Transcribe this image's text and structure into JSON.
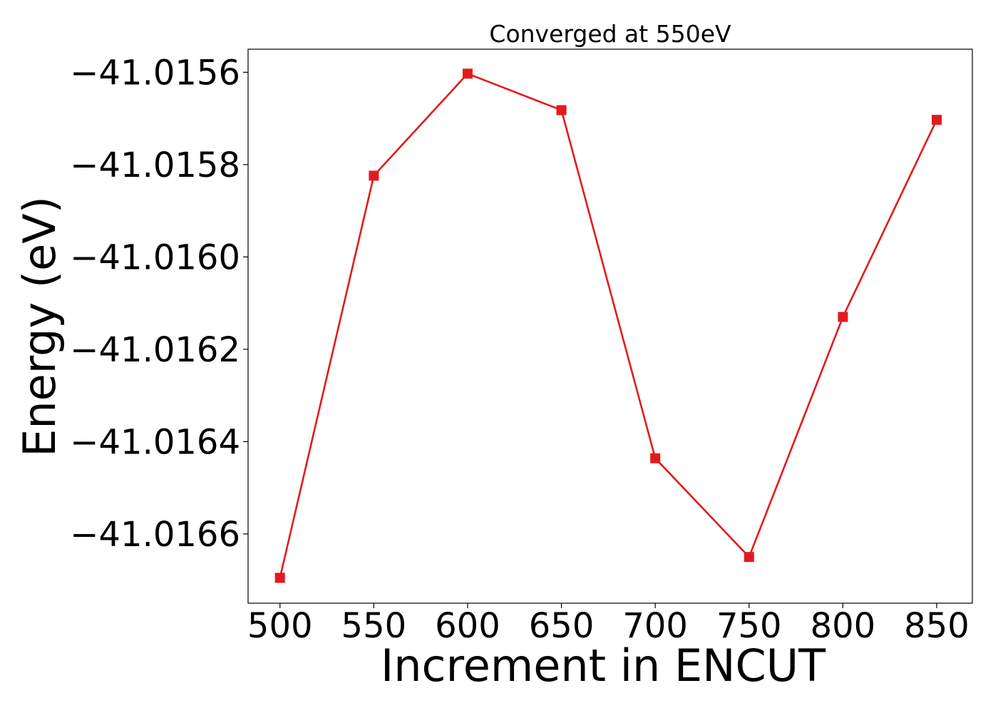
{
  "chart_data": {
    "type": "line",
    "title": "Converged at 550eV",
    "xlabel": "Increment in ENCUT",
    "ylabel": "Energy (eV)",
    "x": [
      500,
      550,
      600,
      650,
      700,
      750,
      800,
      850
    ],
    "x_ticks": [
      500,
      550,
      600,
      650,
      700,
      750,
      800,
      850
    ],
    "x_tick_labels": [
      "500",
      "550",
      "600",
      "650",
      "700",
      "750",
      "800",
      "850"
    ],
    "y_ticks": [
      -41.0156,
      -41.0158,
      -41.016,
      -41.0162,
      -41.0164,
      -41.0166
    ],
    "y_tick_labels": [
      "−41.0156",
      "−41.0158",
      "−41.0160",
      "−41.0162",
      "−41.0164",
      "−41.0166"
    ],
    "xlim": [
      483,
      869
    ],
    "ylim": [
      -41.01675,
      -41.01555
    ],
    "grid": false,
    "series": [
      {
        "values": [
          -41.016695,
          -41.015824,
          -41.015603,
          -41.015682,
          -41.016436,
          -41.01665,
          -41.01613,
          -41.015703
        ],
        "color": "#e41a1c",
        "marker": "square"
      }
    ]
  }
}
